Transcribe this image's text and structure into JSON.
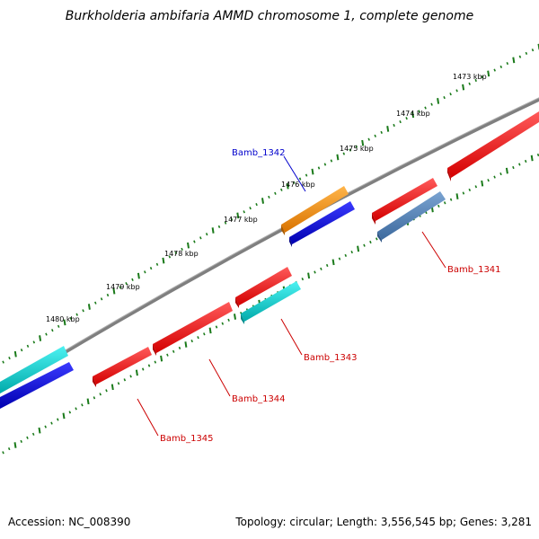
{
  "title": "Burkholderia ambifaria AMMD chromosome 1, complete genome",
  "footer": {
    "accession": "Accession: NC_008390",
    "summary": "Topology: circular; Length: 3,556,545 bp; Genes: 3,281"
  },
  "scale_labels": [
    "1473 kbp",
    "1474 kbp",
    "1475 kbp",
    "1476 kbp",
    "1477 kbp",
    "1478 kbp",
    "1479 kbp",
    "1480 kbp"
  ],
  "gene_labels": {
    "g1342": "Bamb_1342",
    "g1341": "Bamb_1341",
    "g1343": "Bamb_1343",
    "g1344": "Bamb_1344",
    "g1345": "Bamb_1345"
  },
  "colors": {
    "backbone": "#808080",
    "ticks": "#1a7a1a",
    "cds_red": "#ff0000",
    "orange": "#ff8c00",
    "blue": "#0000ee",
    "cyan": "#22cccc",
    "steelblue": "#4f7fb4",
    "label_blue": "#0000cc",
    "label_red": "#cc0000"
  }
}
